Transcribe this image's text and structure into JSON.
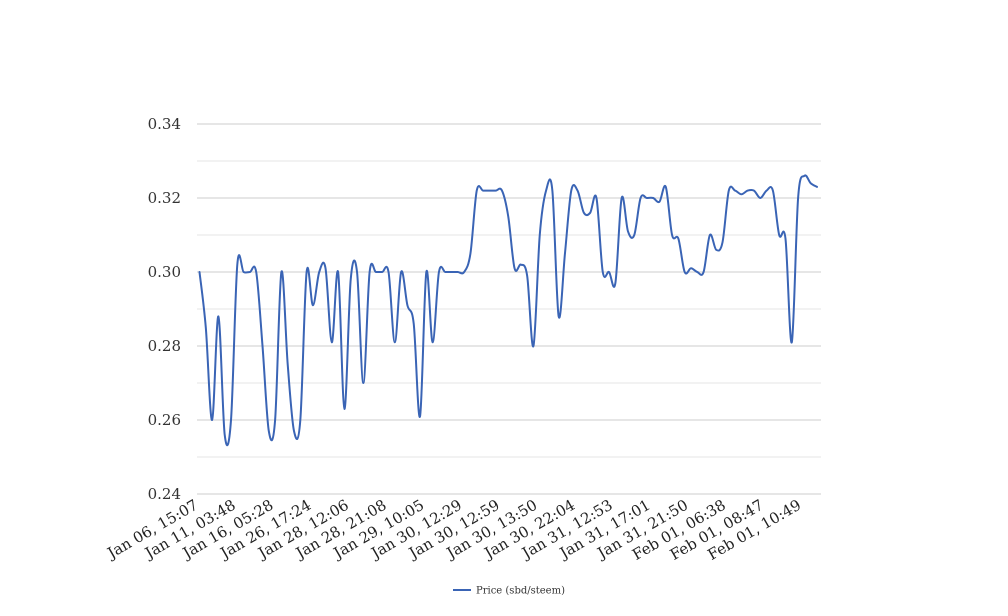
{
  "chart_data": {
    "type": "line",
    "title": "",
    "xlabel": "",
    "ylabel": "",
    "ylim": [
      0.24,
      0.34
    ],
    "yticks": [
      "0.34",
      "0.32",
      "0.30",
      "0.28",
      "0.26",
      "0.24"
    ],
    "ytick_values": [
      0.34,
      0.32,
      0.3,
      0.28,
      0.26,
      0.24
    ],
    "minor_grid_values": [
      0.33,
      0.31,
      0.29,
      0.27,
      0.25
    ],
    "grid": true,
    "legend_position": "bottom-center",
    "x_tick_labels": [
      "Jan 06, 15:07",
      "Jan 11, 03:48",
      "Jan 16, 05:28",
      "Jan 26, 17:24",
      "Jan 28, 12:06",
      "Jan 28, 21:08",
      "Jan 29, 10:05",
      "Jan 30, 12:29",
      "Jan 30, 12:59",
      "Jan 30, 13:50",
      "Jan 30, 22:04",
      "Jan 31, 12:53",
      "Jan 31, 17:01",
      "Jan 31, 21:50",
      "Feb 01, 06:38",
      "Feb 01, 08:47",
      "Feb 01, 10:49"
    ],
    "series": [
      {
        "name": "Price (sbd/steem)",
        "color": "#3a64b5",
        "values": [
          0.3,
          0.285,
          0.26,
          0.288,
          0.256,
          0.26,
          0.302,
          0.3,
          0.3,
          0.3,
          0.28,
          0.257,
          0.26,
          0.3,
          0.275,
          0.257,
          0.26,
          0.3,
          0.291,
          0.3,
          0.301,
          0.281,
          0.3,
          0.263,
          0.298,
          0.3,
          0.27,
          0.3,
          0.3,
          0.3,
          0.3,
          0.281,
          0.3,
          0.291,
          0.286,
          0.261,
          0.3,
          0.281,
          0.3,
          0.3,
          0.3,
          0.3,
          0.3,
          0.305,
          0.322,
          0.322,
          0.322,
          0.322,
          0.322,
          0.315,
          0.301,
          0.302,
          0.299,
          0.28,
          0.31,
          0.322,
          0.322,
          0.288,
          0.305,
          0.322,
          0.322,
          0.316,
          0.316,
          0.32,
          0.3,
          0.3,
          0.297,
          0.32,
          0.311,
          0.31,
          0.32,
          0.32,
          0.32,
          0.319,
          0.323,
          0.31,
          0.309,
          0.3,
          0.301,
          0.3,
          0.3,
          0.31,
          0.306,
          0.308,
          0.322,
          0.322,
          0.321,
          0.322,
          0.322,
          0.32,
          0.322,
          0.322,
          0.31,
          0.309,
          0.281,
          0.32,
          0.326,
          0.324,
          0.323
        ]
      }
    ]
  },
  "legend": {
    "label": "Price (sbd/steem)"
  }
}
